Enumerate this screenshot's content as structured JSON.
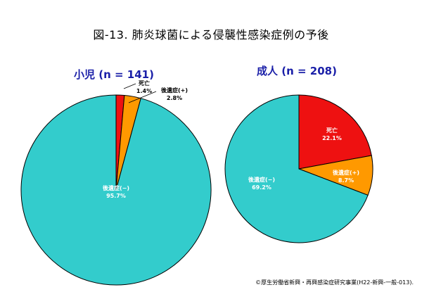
{
  "title": "図-13. 肺炎球菌による侵襲性感染症例の予後",
  "footer": "©厚生労働省新興・再興感染症研究事業(H22-新興-一般-013).",
  "colors": {
    "death": "#ee1111",
    "sequelae_plus": "#ff9900",
    "sequelae_minus": "#33cccc"
  },
  "chart_data": [
    {
      "type": "pie",
      "title": "小児 (n = 141)",
      "slices": [
        {
          "label": "死亡",
          "value": 1.4,
          "value_label": "1.4%",
          "color": "#ee1111"
        },
        {
          "label": "後遺症(+)",
          "value": 2.8,
          "value_label": "2.8%",
          "color": "#ff9900"
        },
        {
          "label": "後遺症(−)",
          "value": 95.7,
          "value_label": "95.7%",
          "color": "#33cccc"
        }
      ]
    },
    {
      "type": "pie",
      "title": "成人 (n = 208)",
      "slices": [
        {
          "label": "死亡",
          "value": 22.1,
          "value_label": "22.1%",
          "color": "#ee1111"
        },
        {
          "label": "後遺症(+)",
          "value": 8.7,
          "value_label": "8.7%",
          "color": "#ff9900"
        },
        {
          "label": "後遺症(−)",
          "value": 69.2,
          "value_label": "69.2%",
          "color": "#33cccc"
        }
      ]
    }
  ]
}
